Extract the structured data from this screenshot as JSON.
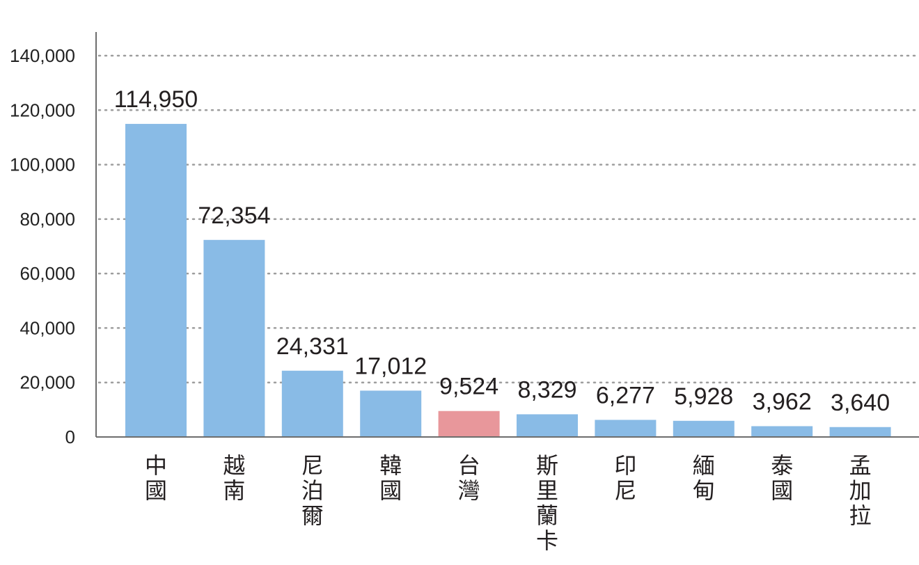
{
  "chart_data": {
    "type": "bar",
    "categories": [
      "中國",
      "越南",
      "尼泊爾",
      "韓國",
      "台灣",
      "斯里蘭卡",
      "印尼",
      "緬甸",
      "泰國",
      "孟加拉"
    ],
    "values": [
      114950,
      72354,
      24331,
      17012,
      9524,
      8329,
      6277,
      5928,
      3962,
      3640
    ],
    "value_labels": [
      "114,950",
      "72,354",
      "24,331",
      "17,012",
      "9,524",
      "8,329",
      "6,277",
      "5,928",
      "3,962",
      "3,640"
    ],
    "yticks": [
      0,
      20000,
      40000,
      60000,
      80000,
      100000,
      120000,
      140000
    ],
    "ytick_labels": [
      "0",
      "20,000",
      "40,000",
      "60,000",
      "80,000",
      "100,000",
      "120,000",
      "140,000"
    ],
    "ylim": [
      0,
      148000
    ],
    "title": "",
    "xlabel": "",
    "ylabel": "",
    "grid": true,
    "highlight_category": "台灣",
    "colors": {
      "bar": "#89bbe6",
      "highlight": "#e8979b",
      "grid": "#9d9d9d",
      "axis": "#6d6d6d",
      "text": "#231f20"
    }
  }
}
